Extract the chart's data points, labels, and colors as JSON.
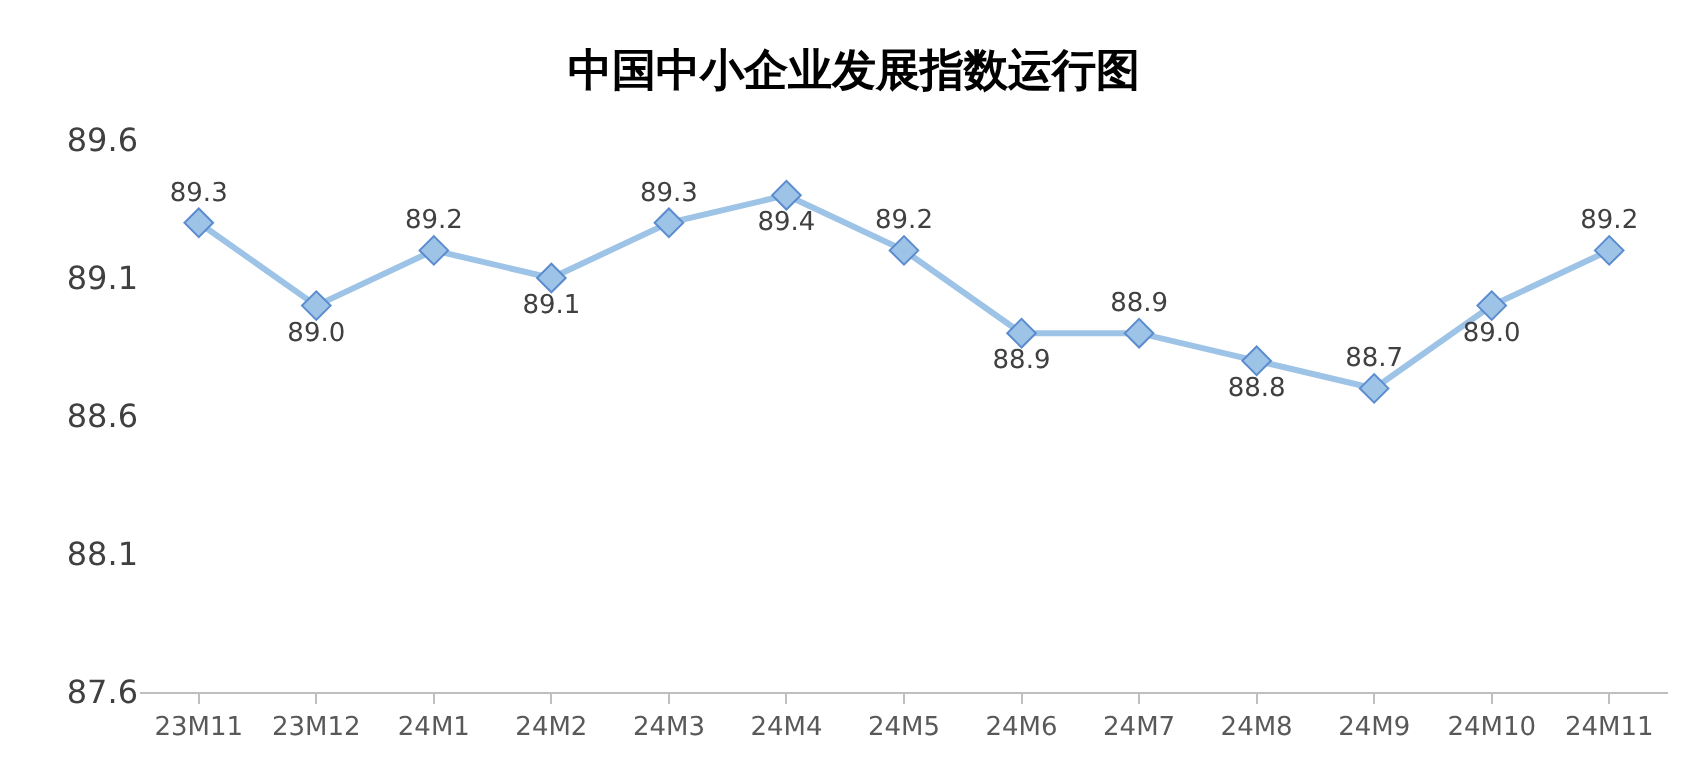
{
  "chart_data": {
    "type": "line",
    "title": "中国中小企业发展指数运行图",
    "categories": [
      "23M11",
      "23M12",
      "24M1",
      "24M2",
      "24M3",
      "24M4",
      "24M5",
      "24M6",
      "24M7",
      "24M8",
      "24M9",
      "24M10",
      "24M11"
    ],
    "series": [
      {
        "color": "#9dc3e6",
        "values": [
          89.3,
          89.0,
          89.2,
          89.1,
          89.3,
          89.4,
          89.2,
          88.9,
          88.9,
          88.8,
          88.7,
          89.0,
          89.2
        ],
        "value_labels": [
          "89.3",
          "89.0",
          "89.2",
          "89.1",
          "89.3",
          "89.4",
          "89.2",
          "88.9",
          "88.9",
          "88.8",
          "88.7",
          "89.0",
          "89.2"
        ]
      }
    ],
    "ylim": [
      87.6,
      89.6
    ],
    "yticks": [
      87.6,
      88.1,
      88.6,
      89.1,
      89.6
    ],
    "marker": "diamond",
    "legend": false
  }
}
